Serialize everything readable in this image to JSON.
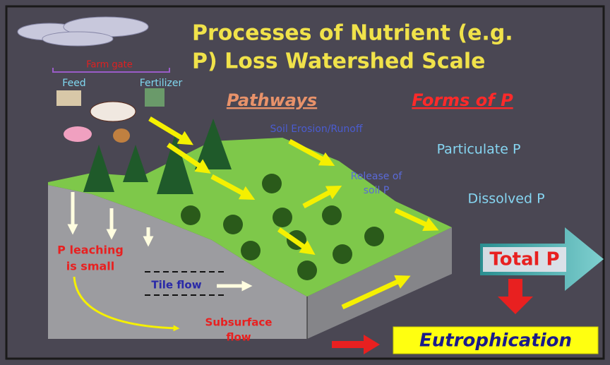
{
  "title": {
    "lines": [
      "Processes of Nutrient (e.g.",
      "P) Loss Watershed Scale"
    ]
  },
  "farm": {
    "gate": "Farm gate",
    "feed": "Feed",
    "fertilizer": "Fertilizer"
  },
  "headings": {
    "pathways": "Pathways",
    "forms": "Forms of P"
  },
  "pathways": {
    "erosion": "Soil Erosion/Runoff",
    "release": [
      "Release of",
      "soil P"
    ],
    "leaching": [
      "P leaching",
      "is small"
    ],
    "tile": "Tile flow",
    "subsurface": [
      "Subsurface",
      "flow"
    ]
  },
  "forms": {
    "particulate": "Particulate P",
    "dissolved": "Dissolved P",
    "total": "Total P"
  },
  "outcome": "Eutrophication"
}
